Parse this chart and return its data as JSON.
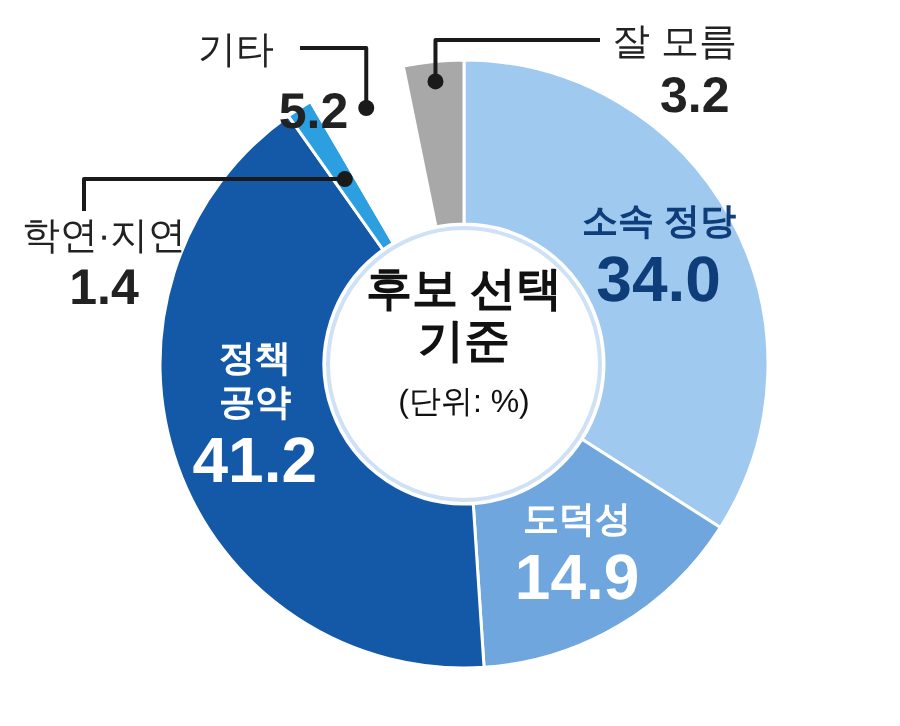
{
  "chart_data": {
    "type": "donut",
    "title": "후보 선택 기준",
    "subtitle": "(단위: %)",
    "categories": [
      "소속 정당",
      "도덕성",
      "정책 공약",
      "학연·지연",
      "기타",
      "잘 모름"
    ],
    "values": [
      34.0,
      14.9,
      41.2,
      1.4,
      5.2,
      3.2
    ],
    "value_labels": [
      "34.0",
      "14.9",
      "41.2",
      "1.4",
      "5.2",
      "3.2"
    ],
    "colors": [
      "#9fc9ee",
      "#6fa6de",
      "#1459a8",
      "#2b9fe0",
      "#ffffff",
      "#a8a8a8"
    ]
  }
}
